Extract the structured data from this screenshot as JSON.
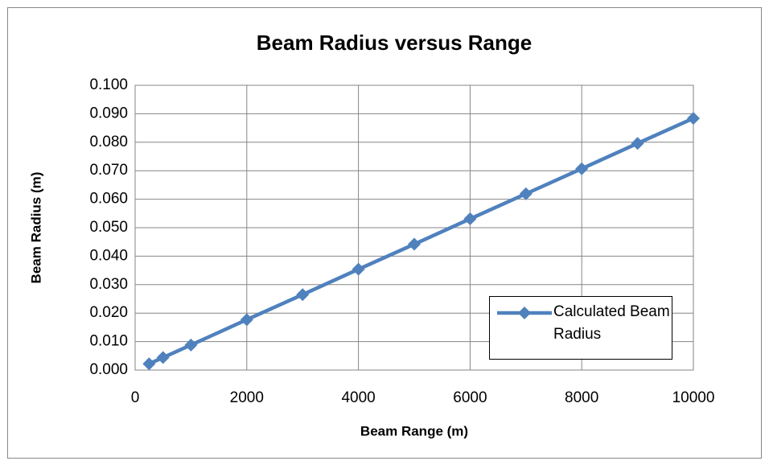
{
  "chart_data": {
    "type": "scatter",
    "title": "Beam Radius versus Range",
    "x_label": "Beam Range (m)",
    "y_label": "Beam Radius (m)",
    "x": [
      250,
      500,
      1000,
      2000,
      3000,
      4000,
      5000,
      6000,
      7000,
      8000,
      9000,
      10000
    ],
    "series": [
      {
        "name": "Calculated Beam Radius",
        "color": "#4f81bd",
        "values": [
          0.0022,
          0.0044,
          0.0088,
          0.0177,
          0.0265,
          0.0354,
          0.0442,
          0.0531,
          0.0619,
          0.0707,
          0.0796,
          0.0884
        ]
      }
    ],
    "xlim": [
      0,
      10000
    ],
    "xticks": [
      0,
      2000,
      4000,
      6000,
      8000,
      10000
    ],
    "ylim": [
      0,
      0.1
    ],
    "yticks": [
      {
        "value": 0,
        "label": "0.000"
      },
      {
        "value": 0.01,
        "label": "0.010"
      },
      {
        "value": 0.02,
        "label": "0.020"
      },
      {
        "value": 0.03,
        "label": "0.030"
      },
      {
        "value": 0.04,
        "label": "0.040"
      },
      {
        "value": 0.05,
        "label": "0.050"
      },
      {
        "value": 0.06,
        "label": "0.060"
      },
      {
        "value": 0.07,
        "label": "0.070"
      },
      {
        "value": 0.08,
        "label": "0.080"
      },
      {
        "value": 0.09,
        "label": "0.090"
      },
      {
        "value": 0.1,
        "label": "0.100"
      }
    ],
    "grid": true,
    "legend": "lower right"
  }
}
